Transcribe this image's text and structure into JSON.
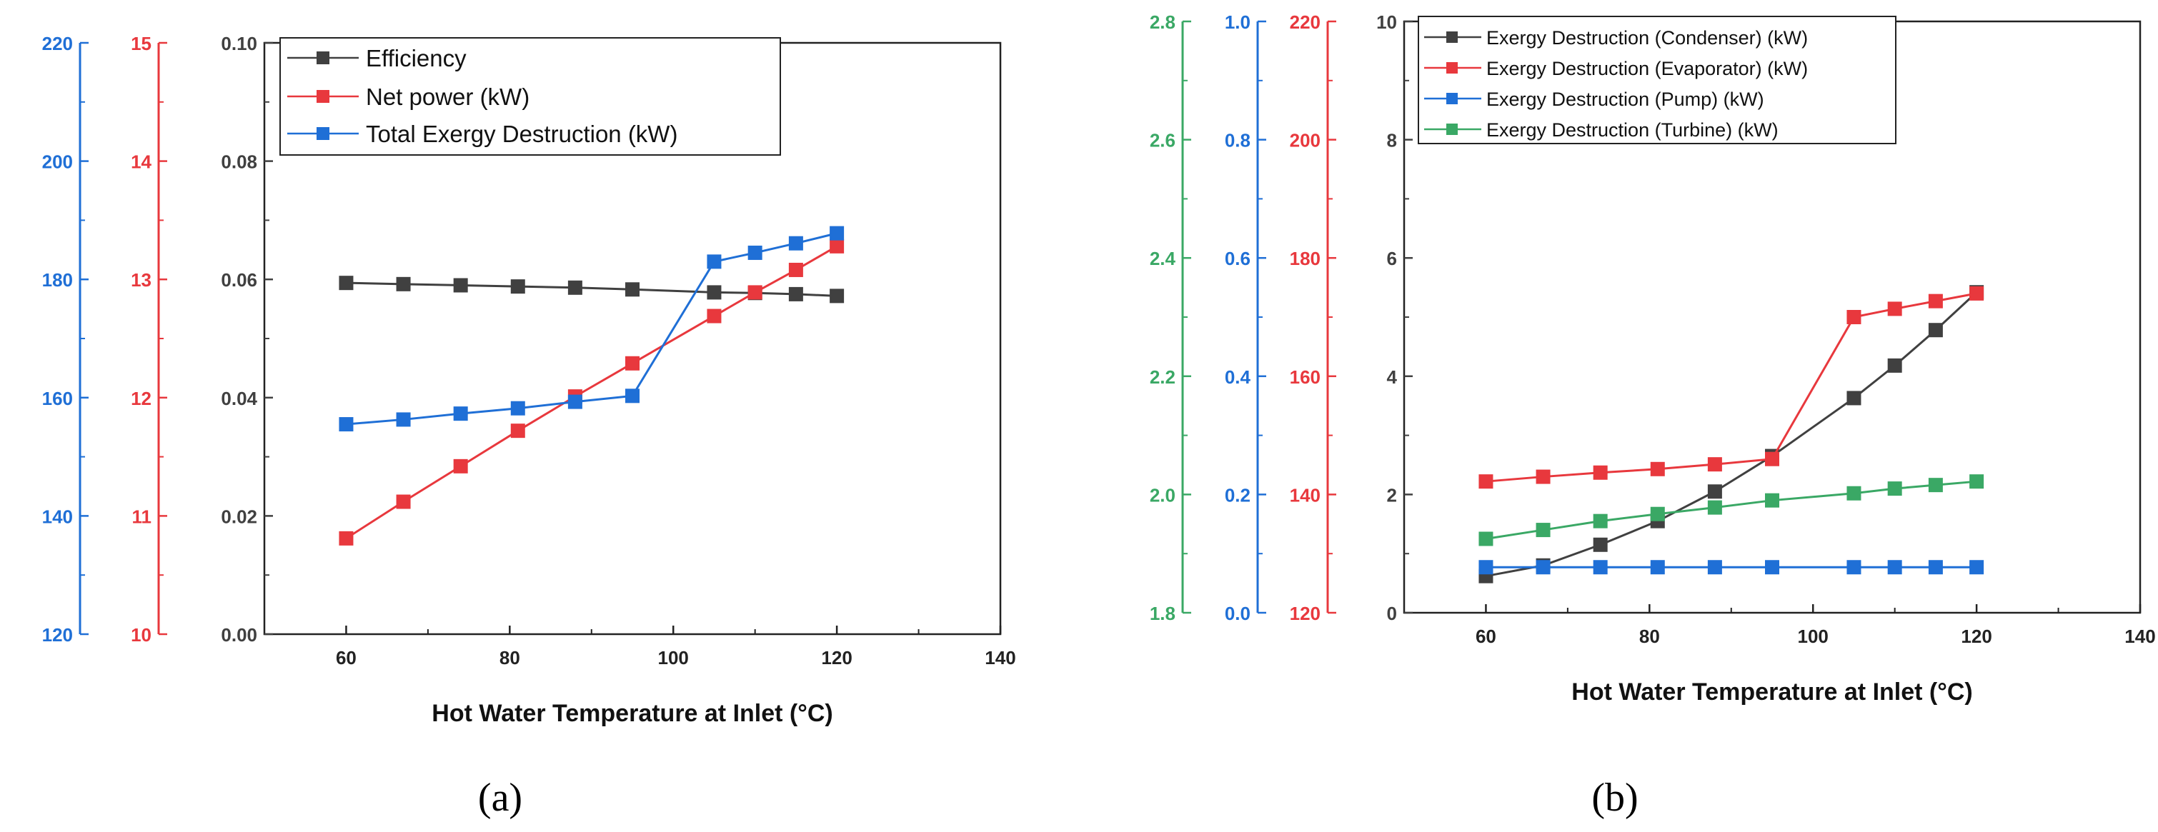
{
  "colors": {
    "black": "#404040",
    "red": "#e8383d",
    "blue": "#1f6fd6",
    "green": "#3aa865"
  },
  "chart_data": [
    {
      "type": "line",
      "panel_label": "(a)",
      "xlabel": "Hot Water Temperature at Inlet (°C)",
      "x_ticks": [
        "60",
        "80",
        "100",
        "120",
        "140"
      ],
      "x": [
        60,
        67,
        74,
        81,
        88,
        95,
        105,
        110,
        115,
        120
      ],
      "axes": [
        {
          "name": "main",
          "range": [
            0,
            0.1
          ],
          "ticks": [
            "0.00",
            "0.02",
            "0.04",
            "0.06",
            "0.08",
            "0.10"
          ],
          "color": "black"
        },
        {
          "name": "net-power",
          "range": [
            10,
            15
          ],
          "ticks": [
            "10",
            "11",
            "12",
            "13",
            "14",
            "15"
          ],
          "color": "red"
        },
        {
          "name": "total-exergy",
          "range": [
            120,
            220
          ],
          "ticks": [
            "120",
            "140",
            "160",
            "180",
            "200",
            "220"
          ],
          "color": "blue"
        }
      ],
      "legend_position": "top-left",
      "series": [
        {
          "name": "Efficiency",
          "axis": "main",
          "color": "black",
          "values": [
            0.0594,
            0.0592,
            0.059,
            0.0588,
            0.0586,
            0.0583,
            0.0578,
            0.0577,
            0.0575,
            0.0572
          ]
        },
        {
          "name": "Net power (kW)",
          "axis": "net-power",
          "color": "red",
          "values": [
            10.81,
            11.12,
            11.42,
            11.72,
            12.01,
            12.29,
            12.69,
            12.89,
            13.08,
            13.28
          ]
        },
        {
          "name": "Total Exergy Destruction (kW)",
          "axis": "total-exergy",
          "color": "blue",
          "values": [
            155.5,
            156.3,
            157.3,
            158.2,
            159.3,
            160.3,
            183.0,
            184.5,
            186.1,
            187.8
          ]
        }
      ]
    },
    {
      "type": "line",
      "panel_label": "(b)",
      "xlabel": "Hot Water Temperature at Inlet (°C)",
      "x_ticks": [
        "60",
        "80",
        "100",
        "120",
        "140"
      ],
      "x": [
        60,
        67,
        74,
        81,
        88,
        95,
        105,
        110,
        115,
        120
      ],
      "axes": [
        {
          "name": "main",
          "range": [
            0,
            10
          ],
          "ticks": [
            "0",
            "2",
            "4",
            "6",
            "8",
            "10"
          ],
          "color": "black"
        },
        {
          "name": "evaporator",
          "range": [
            120,
            220
          ],
          "ticks": [
            "120",
            "140",
            "160",
            "180",
            "200",
            "220"
          ],
          "color": "red"
        },
        {
          "name": "pump",
          "range": [
            0,
            1.0
          ],
          "ticks": [
            "0.0",
            "0.2",
            "0.4",
            "0.6",
            "0.8",
            "1.0"
          ],
          "color": "blue"
        },
        {
          "name": "turbine",
          "range": [
            1.8,
            2.8
          ],
          "ticks": [
            "1.8",
            "2.0",
            "2.2",
            "2.4",
            "2.6",
            "2.8"
          ],
          "color": "green"
        }
      ],
      "legend_position": "top-left",
      "series": [
        {
          "name": "Exergy Destruction (Condenser) (kW)",
          "axis": "main",
          "color": "black",
          "values": [
            0.62,
            0.8,
            1.15,
            1.55,
            2.05,
            2.65,
            3.63,
            4.18,
            4.78,
            5.42
          ]
        },
        {
          "name": "Exergy Destruction (Evaporator) (kW)",
          "axis": "evaporator",
          "color": "red",
          "values": [
            142.2,
            143.0,
            143.7,
            144.3,
            145.1,
            146.0,
            170.0,
            171.4,
            172.7,
            174.0
          ]
        },
        {
          "name": "Exergy Destruction (Pump) (kW)",
          "axis": "pump",
          "color": "blue",
          "values": [
            0.077,
            0.077,
            0.077,
            0.077,
            0.077,
            0.077,
            0.077,
            0.077,
            0.077,
            0.077
          ]
        },
        {
          "name": "Exergy Destruction (Turbine) (kW)",
          "axis": "turbine",
          "color": "green",
          "values": [
            1.925,
            1.94,
            1.955,
            1.967,
            1.978,
            1.99,
            2.002,
            2.01,
            2.016,
            2.022
          ]
        }
      ]
    }
  ]
}
